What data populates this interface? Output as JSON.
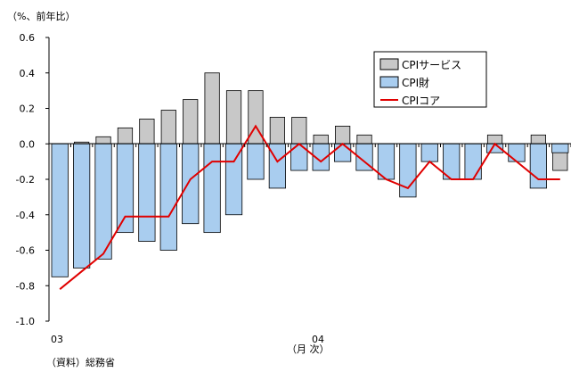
{
  "chart_data": {
    "type": "bar",
    "unit_label": "（%、前年比）",
    "source": "（資料）総務省",
    "xlabel": "（月 次）",
    "ylim": [
      -1.0,
      0.6
    ],
    "yticks": [
      "0.6",
      "0.4",
      "0.2",
      "0.0",
      "-0.2",
      "-0.4",
      "-0.6",
      "-0.8",
      "-1.0"
    ],
    "ytick_values": [
      0.6,
      0.4,
      0.2,
      0.0,
      -0.2,
      -0.4,
      -0.6,
      -0.8,
      -1.0
    ],
    "xtick_labels": [
      {
        "index": 0,
        "label": "03"
      },
      {
        "index": 12,
        "label": "04"
      }
    ],
    "categories": [
      "",
      "",
      "",
      "",
      "",
      "",
      "",
      "",
      "",
      "",
      "",
      "",
      "",
      "",
      "",
      "",
      "",
      "",
      "",
      "",
      "",
      "",
      "",
      ""
    ],
    "series": [
      {
        "name": "CPIサービス",
        "kind": "bar",
        "color": "#c8c8c8",
        "values": [
          -0.03,
          0.01,
          0.04,
          0.09,
          0.14,
          0.19,
          0.25,
          0.4,
          0.3,
          0.3,
          0.15,
          0.15,
          0.05,
          0.1,
          0.05,
          -0.01,
          -0.05,
          -0.05,
          -0.1,
          -0.15,
          0.05,
          -0.05,
          0.05,
          -0.15
        ]
      },
      {
        "name": "CPI財",
        "kind": "bar",
        "color": "#a9cdef",
        "values": [
          -0.75,
          -0.7,
          -0.65,
          -0.5,
          -0.55,
          -0.6,
          -0.45,
          -0.5,
          -0.4,
          -0.2,
          -0.25,
          -0.15,
          -0.15,
          -0.1,
          -0.15,
          -0.2,
          -0.3,
          -0.1,
          -0.2,
          -0.2,
          -0.05,
          -0.1,
          -0.25,
          -0.05
        ]
      },
      {
        "name": "CPIコア",
        "kind": "line",
        "color": "#e00000",
        "values": [
          -0.82,
          -0.72,
          -0.62,
          -0.41,
          -0.41,
          -0.41,
          -0.2,
          -0.1,
          -0.1,
          0.1,
          -0.1,
          0.0,
          -0.1,
          0.0,
          -0.1,
          -0.2,
          -0.25,
          -0.1,
          -0.2,
          -0.2,
          0.0,
          -0.1,
          -0.2,
          -0.2
        ]
      }
    ],
    "legend_position": "top-right",
    "grid": false
  }
}
